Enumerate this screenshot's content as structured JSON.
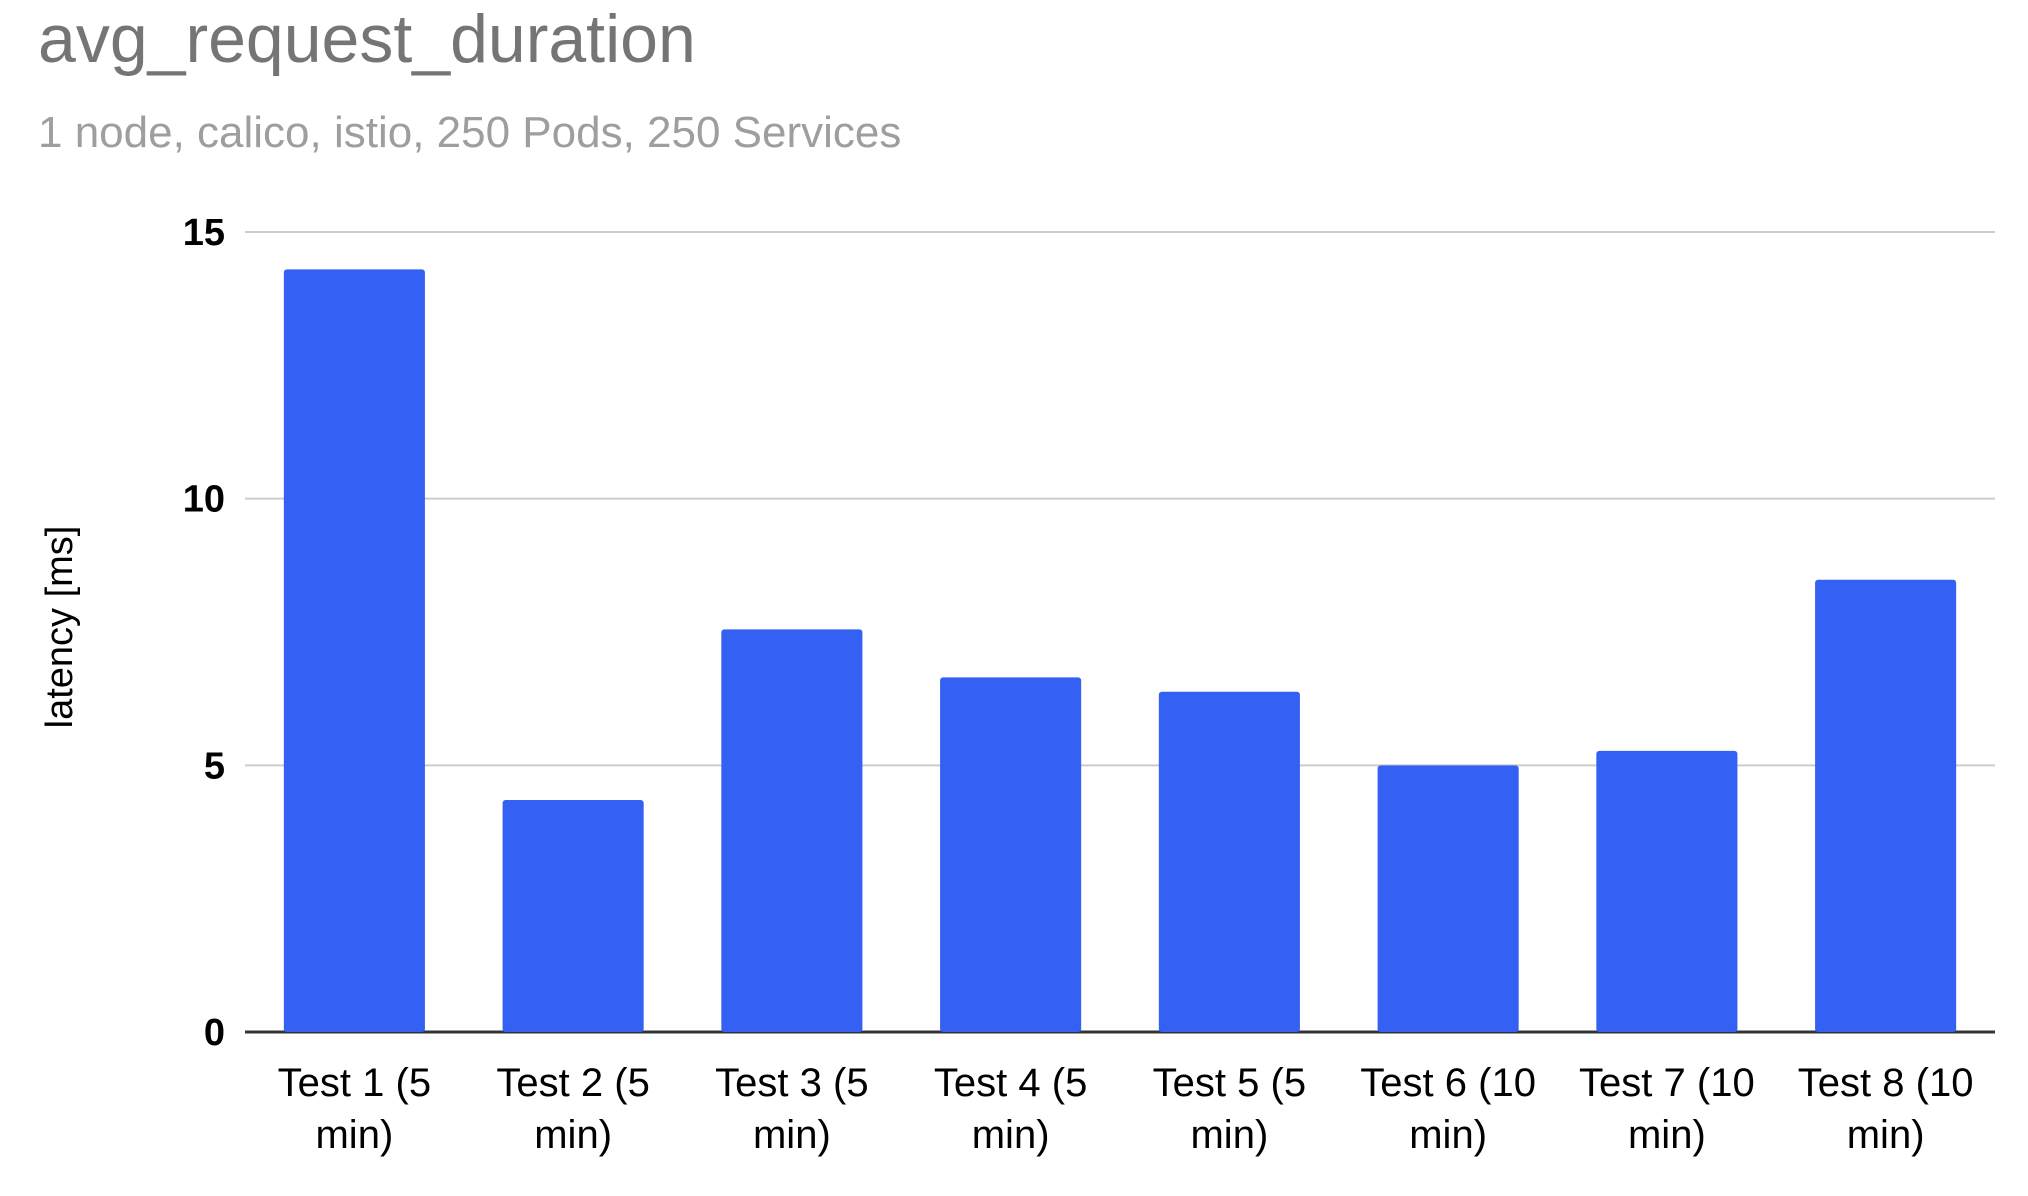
{
  "chart_data": {
    "type": "bar",
    "title": "avg_request_duration",
    "subtitle": "1 node, calico, istio, 250 Pods, 250 Services",
    "xlabel": "",
    "ylabel": "latency [ms]",
    "ylim": [
      0,
      15
    ],
    "yticks": [
      "0",
      "5",
      "10",
      "15"
    ],
    "grid": true,
    "legend": "none",
    "categories": [
      [
        "Test 1 (5",
        "min)"
      ],
      [
        "Test 2 (5",
        "min)"
      ],
      [
        "Test 3 (5",
        "min)"
      ],
      [
        "Test 4 (5",
        "min)"
      ],
      [
        "Test 5 (5",
        "min)"
      ],
      [
        "Test 6 (10",
        "min)"
      ],
      [
        "Test 7 (10",
        "min)"
      ],
      [
        "Test 8 (10",
        "min)"
      ]
    ],
    "values": [
      14.3,
      4.35,
      7.55,
      6.65,
      6.38,
      5.0,
      5.27,
      8.48
    ],
    "colors": {
      "bar": "#3461f4",
      "grid": "#cccccc",
      "baseline": "#333333"
    }
  }
}
